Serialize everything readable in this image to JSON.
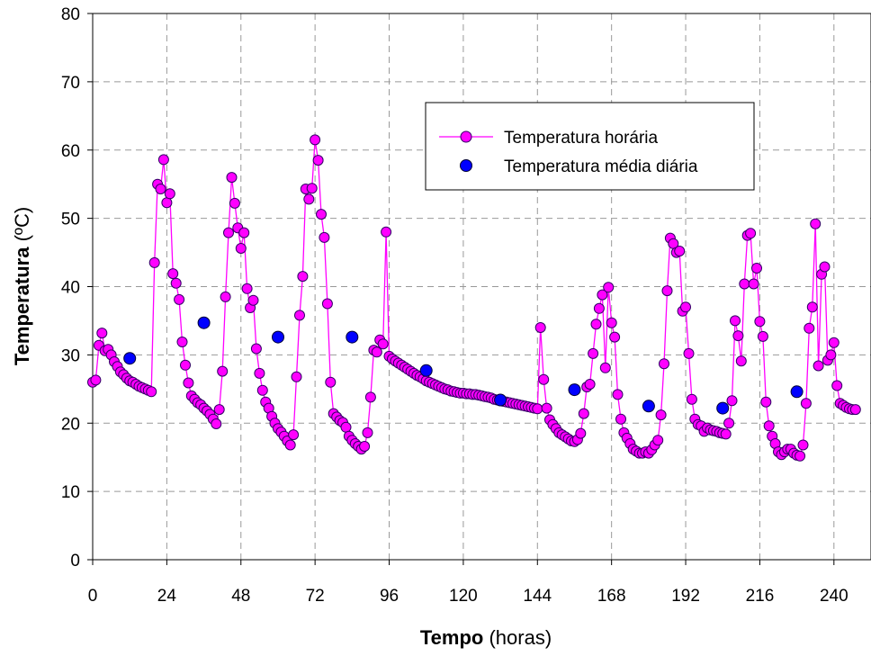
{
  "chart_data": {
    "type": "line",
    "xlabel_bold": "Tempo",
    "xlabel_unit": " (horas)",
    "ylabel_bold": "Temperatura",
    "ylabel_unit": " (ºC)",
    "xlim": [
      0,
      252
    ],
    "ylim": [
      0,
      80
    ],
    "xticks": [
      0,
      24,
      48,
      72,
      96,
      120,
      144,
      168,
      192,
      216,
      240
    ],
    "yticks": [
      0,
      10,
      20,
      30,
      40,
      50,
      60,
      70,
      80
    ],
    "grid": true,
    "legend_position": "upper-right inside",
    "colors": {
      "hourly_line": "#ff00ff",
      "hourly_marker_fill": "#ff00ff",
      "hourly_marker_edge": "#330066",
      "daily_marker_fill": "#0000ff",
      "daily_marker_edge": "#000033"
    },
    "series": [
      {
        "name": "Temperatura horária",
        "style": "line-markers",
        "x_start": 0,
        "x_step": 1,
        "values": [
          26.0,
          26.3,
          31.4,
          33.2,
          30.6,
          30.8,
          30.0,
          29.0,
          28.3,
          27.5,
          27.1,
          26.6,
          26.2,
          26.0,
          25.7,
          25.4,
          25.2,
          25.0,
          24.8,
          24.6,
          43.5,
          55.0,
          54.3,
          58.6,
          52.3,
          53.6,
          41.9,
          40.5,
          38.1,
          31.9,
          28.5,
          25.9,
          24.0,
          23.5,
          23.0,
          22.7,
          22.2,
          21.8,
          21.3,
          20.6,
          19.9,
          22.0,
          27.6,
          38.5,
          47.9,
          56.0,
          52.2,
          48.6,
          45.6,
          47.9,
          39.7,
          36.9,
          38.0,
          30.9,
          27.3,
          24.8,
          23.1,
          22.2,
          21.0,
          20.0,
          19.2,
          18.7,
          18.1,
          17.4,
          16.8,
          18.3,
          26.8,
          35.8,
          41.5,
          54.3,
          52.8,
          54.4,
          61.5,
          58.5,
          50.6,
          47.2,
          37.5,
          26.0,
          21.4,
          20.9,
          20.4,
          20.1,
          19.4,
          18.1,
          17.5,
          17.0,
          16.6,
          16.2,
          16.6,
          18.6,
          23.8,
          30.7,
          30.4,
          32.2,
          31.6,
          48.0,
          29.8,
          29.4,
          29.1,
          28.8,
          28.5,
          28.2,
          27.9,
          27.6,
          27.3,
          27.0,
          26.8,
          26.5,
          26.2,
          26.0,
          25.8,
          25.6,
          25.4,
          25.2,
          25.0,
          24.9,
          24.7,
          24.6,
          24.5,
          24.4,
          24.4,
          24.3,
          24.3,
          24.2,
          24.2,
          24.1,
          24.0,
          23.9,
          23.8,
          23.7,
          23.5,
          23.4,
          23.3,
          23.2,
          23.1,
          23.0,
          22.9,
          22.8,
          22.7,
          22.6,
          22.5,
          22.4,
          22.3,
          22.2,
          22.1,
          34.0,
          26.4,
          22.2,
          20.5,
          19.8,
          19.2,
          18.6,
          18.3,
          18.0,
          17.7,
          17.4,
          17.3,
          17.6,
          18.5,
          21.4,
          25.3,
          25.7,
          30.2,
          34.5,
          36.8,
          38.8,
          28.1,
          39.9,
          34.7,
          32.6,
          24.2,
          20.6,
          18.6,
          17.8,
          17.0,
          16.2,
          15.9,
          15.6,
          15.6,
          15.8,
          15.6,
          16.1,
          16.8,
          17.5,
          21.2,
          28.7,
          39.4,
          47.1,
          46.3,
          45.0,
          45.2,
          36.4,
          37.0,
          30.2,
          23.5,
          20.6,
          19.8,
          19.6,
          18.8,
          19.3,
          19.0,
          18.9,
          18.8,
          18.6,
          18.5,
          18.4,
          20.0,
          23.3,
          35.0,
          32.8,
          29.1,
          40.4,
          47.5,
          47.8,
          40.4,
          42.7,
          34.9,
          32.7,
          23.1,
          19.6,
          18.1,
          17.0,
          15.8,
          15.4,
          15.8,
          16.2,
          16.2,
          15.6,
          15.3,
          15.2,
          16.8,
          22.9,
          33.9,
          37.0,
          49.2,
          28.4,
          41.8,
          42.9,
          29.2,
          30.0,
          31.8,
          25.5,
          22.9,
          22.6,
          22.3,
          22.1,
          22.0,
          22.0
        ]
      },
      {
        "name": "Temperatura média diária",
        "style": "markers",
        "x": [
          12,
          36,
          60,
          84,
          108,
          132,
          156,
          180,
          204,
          228
        ],
        "values": [
          29.5,
          34.7,
          32.6,
          32.6,
          27.7,
          23.4,
          24.9,
          22.5,
          22.2,
          24.6
        ]
      }
    ]
  }
}
